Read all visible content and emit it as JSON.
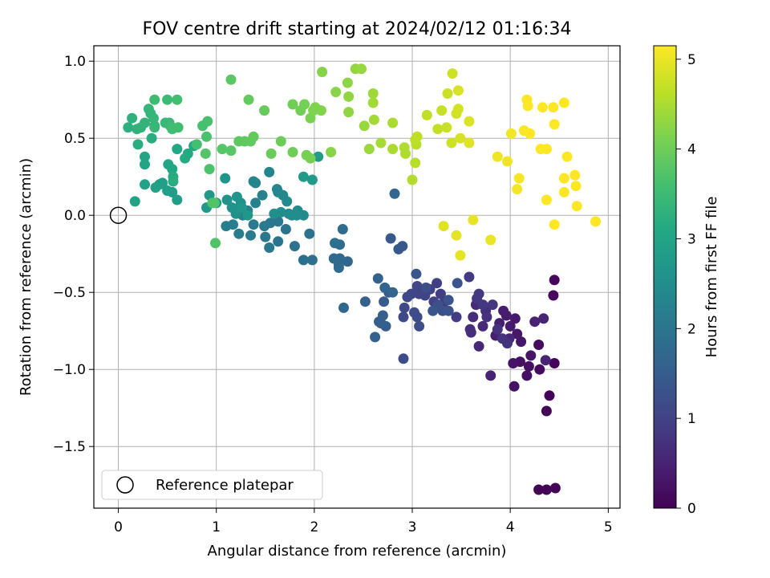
{
  "chart_data": {
    "type": "scatter",
    "title": "FOV centre drift starting at 2024/02/12 01:16:34",
    "xlabel": "Angular distance from reference (arcmin)",
    "ylabel": "Rotation from reference (arcmin)",
    "xlim": [
      -0.25,
      5.12
    ],
    "ylim": [
      -1.9,
      1.1
    ],
    "xticks": [
      0,
      1,
      2,
      3,
      4,
      5
    ],
    "xtick_labels": [
      "0",
      "1",
      "2",
      "3",
      "4",
      "5"
    ],
    "yticks": [
      1.0,
      0.5,
      0.0,
      -0.5,
      -1.0,
      -1.5
    ],
    "ytick_labels": [
      "1.0",
      "0.5",
      "0.0",
      "−0.5",
      "−1.0",
      "−1.5"
    ],
    "grid": true,
    "colormap": "viridis",
    "colorbar": {
      "label": "Hours from first FF file",
      "range": [
        0,
        5.15
      ],
      "ticks": [
        0,
        1,
        2,
        3,
        4,
        5
      ],
      "tick_labels": [
        "0",
        "1",
        "2",
        "3",
        "4",
        "5"
      ]
    },
    "legend": {
      "position": "lower-left",
      "entries": [
        {
          "label": "Reference platepar",
          "marker": "open-circle"
        }
      ]
    },
    "reference_point": {
      "x": 0.0,
      "y": 0.0
    },
    "points": [
      [
        4.29,
        -1.78,
        0.02
      ],
      [
        4.37,
        -1.78,
        0.03
      ],
      [
        4.46,
        -1.77,
        0.04
      ],
      [
        4.37,
        -1.27,
        0.05
      ],
      [
        4.4,
        -1.17,
        0.06
      ],
      [
        4.45,
        -0.96,
        0.08
      ],
      [
        4.45,
        -0.42,
        0.1
      ],
      [
        4.44,
        -0.52,
        0.12
      ],
      [
        4.3,
        -1.0,
        0.14
      ],
      [
        4.29,
        -0.84,
        0.16
      ],
      [
        4.19,
        -0.98,
        0.2
      ],
      [
        4.17,
        -1.04,
        0.22
      ],
      [
        4.1,
        -0.95,
        0.24
      ],
      [
        4.04,
        -1.11,
        0.26
      ],
      [
        4.03,
        -0.96,
        0.28
      ],
      [
        4.21,
        -0.91,
        0.3
      ],
      [
        4.11,
        -0.82,
        0.32
      ],
      [
        4.07,
        -0.77,
        0.34
      ],
      [
        4.05,
        -0.67,
        0.36
      ],
      [
        4.0,
        -0.72,
        0.38
      ],
      [
        3.96,
        -0.65,
        0.4
      ],
      [
        3.93,
        -0.62,
        0.42
      ],
      [
        3.89,
        -0.7,
        0.44
      ],
      [
        3.85,
        -0.78,
        0.46
      ],
      [
        3.8,
        -1.04,
        0.48
      ],
      [
        4.25,
        -0.69,
        0.5
      ],
      [
        4.34,
        -0.67,
        0.52
      ],
      [
        4.36,
        -0.94,
        0.54
      ],
      [
        3.99,
        -0.8,
        0.56
      ],
      [
        3.68,
        -0.85,
        0.58
      ],
      [
        3.72,
        -0.72,
        0.6
      ],
      [
        3.65,
        -0.58,
        0.62
      ],
      [
        3.62,
        -0.66,
        0.64
      ],
      [
        3.59,
        -0.74,
        0.66
      ],
      [
        3.6,
        -0.76,
        0.68
      ],
      [
        3.75,
        -0.62,
        0.7
      ],
      [
        3.76,
        -0.66,
        0.72
      ],
      [
        3.87,
        -0.74,
        0.74
      ],
      [
        3.92,
        -0.8,
        0.76
      ],
      [
        3.97,
        -0.83,
        0.78
      ],
      [
        3.82,
        -0.58,
        0.8
      ],
      [
        3.66,
        -0.54,
        0.82
      ],
      [
        3.68,
        -0.51,
        0.84
      ],
      [
        3.72,
        -0.58,
        0.86
      ],
      [
        3.58,
        -0.4,
        0.88
      ],
      [
        3.45,
        -0.66,
        0.9
      ],
      [
        3.33,
        -0.56,
        0.92
      ],
      [
        3.29,
        -0.51,
        0.94
      ],
      [
        3.25,
        -0.44,
        0.96
      ],
      [
        3.22,
        -0.56,
        0.98
      ],
      [
        3.18,
        -0.48,
        1.0
      ],
      [
        3.13,
        -0.52,
        1.02
      ],
      [
        3.07,
        -0.51,
        1.04
      ],
      [
        3.05,
        -0.46,
        1.06
      ],
      [
        2.99,
        -0.51,
        1.08
      ],
      [
        2.95,
        -0.53,
        1.1
      ],
      [
        2.92,
        -0.6,
        1.12
      ],
      [
        2.91,
        -0.66,
        1.14
      ],
      [
        2.91,
        -0.93,
        1.16
      ],
      [
        3.02,
        -0.63,
        1.18
      ],
      [
        3.05,
        -0.66,
        1.2
      ],
      [
        3.07,
        -0.72,
        1.22
      ],
      [
        3.14,
        -0.47,
        1.24
      ],
      [
        3.26,
        -0.58,
        1.26
      ],
      [
        3.31,
        -0.62,
        1.28
      ],
      [
        3.37,
        -0.55,
        1.3
      ],
      [
        3.37,
        -0.62,
        1.32
      ],
      [
        3.46,
        -0.44,
        1.34
      ],
      [
        3.21,
        -0.62,
        1.36
      ],
      [
        3.04,
        -0.38,
        1.38
      ],
      [
        2.86,
        -0.22,
        1.4
      ],
      [
        2.9,
        -0.2,
        1.42
      ],
      [
        2.78,
        -0.15,
        1.44
      ],
      [
        2.76,
        -0.5,
        1.46
      ],
      [
        2.71,
        -0.56,
        1.48
      ],
      [
        2.7,
        -0.65,
        1.5
      ],
      [
        2.73,
        -0.72,
        1.52
      ],
      [
        2.68,
        -0.7,
        1.54
      ],
      [
        2.66,
        -0.69,
        1.56
      ],
      [
        2.62,
        -0.79,
        1.58
      ],
      [
        2.52,
        -0.56,
        1.6
      ],
      [
        2.65,
        -0.41,
        1.62
      ],
      [
        2.72,
        -0.47,
        1.64
      ],
      [
        2.8,
        -0.5,
        1.66
      ],
      [
        2.82,
        0.14,
        1.68
      ],
      [
        2.3,
        -0.6,
        1.7
      ],
      [
        2.34,
        -0.3,
        1.72
      ],
      [
        2.26,
        -0.28,
        1.74
      ],
      [
        2.25,
        -0.32,
        1.76
      ],
      [
        2.25,
        -0.34,
        1.78
      ],
      [
        2.2,
        -0.28,
        1.8
      ],
      [
        2.29,
        -0.09,
        1.82
      ],
      [
        2.26,
        -0.19,
        1.84
      ],
      [
        2.21,
        -0.18,
        1.86
      ],
      [
        1.98,
        -0.29,
        1.88
      ],
      [
        1.89,
        -0.29,
        1.9
      ],
      [
        1.95,
        -0.12,
        1.92
      ],
      [
        1.8,
        -0.2,
        1.94
      ],
      [
        1.71,
        -0.09,
        1.96
      ],
      [
        1.63,
        -0.17,
        1.98
      ],
      [
        1.63,
        -0.04,
        2.0
      ],
      [
        1.55,
        -0.05,
        2.02
      ],
      [
        1.5,
        -0.14,
        2.04
      ],
      [
        1.54,
        -0.21,
        2.06
      ],
      [
        1.49,
        -0.07,
        2.08
      ],
      [
        1.38,
        -0.06,
        2.1
      ],
      [
        1.35,
        -0.13,
        2.12
      ],
      [
        1.23,
        -0.12,
        2.14
      ],
      [
        1.17,
        -0.06,
        2.16
      ],
      [
        1.1,
        -0.07,
        2.18
      ],
      [
        1.27,
        0.0,
        2.2
      ],
      [
        1.32,
        0.03,
        2.22
      ],
      [
        1.4,
        0.08,
        2.24
      ],
      [
        1.47,
        0.13,
        2.26
      ],
      [
        1.4,
        0.21,
        2.28
      ],
      [
        1.38,
        0.22,
        2.3
      ],
      [
        1.54,
        0.28,
        2.32
      ],
      [
        1.62,
        0.17,
        2.34
      ],
      [
        1.63,
        0.15,
        2.36
      ],
      [
        1.68,
        0.13,
        2.38
      ],
      [
        1.72,
        0.09,
        2.4
      ],
      [
        1.77,
        0.0,
        2.42
      ],
      [
        1.83,
        0.03,
        2.44
      ],
      [
        1.89,
        0.0,
        2.46
      ],
      [
        1.82,
        0.0,
        2.48
      ],
      [
        1.74,
        0.01,
        2.5
      ],
      [
        1.66,
        0.02,
        2.52
      ],
      [
        1.59,
        0.01,
        2.54
      ],
      [
        1.25,
        0.08,
        2.56
      ],
      [
        1.2,
        0.01,
        2.58
      ],
      [
        1.16,
        0.05,
        2.6
      ],
      [
        1.11,
        0.1,
        2.62
      ],
      [
        1.09,
        0.24,
        2.64
      ],
      [
        1.21,
        0.12,
        2.66
      ],
      [
        1.26,
        0.05,
        2.68
      ],
      [
        1.32,
        0.0,
        2.7
      ],
      [
        1.0,
        0.08,
        2.72
      ],
      [
        0.93,
        0.13,
        2.74
      ],
      [
        0.9,
        0.05,
        2.76
      ],
      [
        1.89,
        0.25,
        2.78
      ],
      [
        1.98,
        0.23,
        2.8
      ],
      [
        2.04,
        0.38,
        2.82
      ],
      [
        0.6,
        0.1,
        2.84
      ],
      [
        0.55,
        0.15,
        2.86
      ],
      [
        0.5,
        0.16,
        2.88
      ],
      [
        0.45,
        0.21,
        2.9
      ],
      [
        0.42,
        0.2,
        2.92
      ],
      [
        0.38,
        0.18,
        2.94
      ],
      [
        0.27,
        0.2,
        2.96
      ],
      [
        0.17,
        0.09,
        2.98
      ],
      [
        0.27,
        0.33,
        3.0
      ],
      [
        0.27,
        0.38,
        3.02
      ],
      [
        0.51,
        0.33,
        3.04
      ],
      [
        0.55,
        0.3,
        3.06
      ],
      [
        0.6,
        0.43,
        3.08
      ],
      [
        0.77,
        0.45,
        3.1
      ],
      [
        0.71,
        0.4,
        3.12
      ],
      [
        0.68,
        0.37,
        3.14
      ],
      [
        0.56,
        0.25,
        3.16
      ],
      [
        0.56,
        0.22,
        3.18
      ],
      [
        0.34,
        0.5,
        3.2
      ],
      [
        0.2,
        0.46,
        3.22
      ],
      [
        0.37,
        0.58,
        3.24
      ],
      [
        0.1,
        0.57,
        3.26
      ],
      [
        0.14,
        0.63,
        3.28
      ],
      [
        0.19,
        0.56,
        3.3
      ],
      [
        0.23,
        0.57,
        3.32
      ],
      [
        0.27,
        0.6,
        3.34
      ],
      [
        0.33,
        0.66,
        3.36
      ],
      [
        0.31,
        0.69,
        3.38
      ],
      [
        0.36,
        0.63,
        3.4
      ],
      [
        0.37,
        0.57,
        3.42
      ],
      [
        0.48,
        0.6,
        3.44
      ],
      [
        0.52,
        0.6,
        3.46
      ],
      [
        0.53,
        0.58,
        3.48
      ],
      [
        0.5,
        0.75,
        3.5
      ],
      [
        0.37,
        0.75,
        3.52
      ],
      [
        0.55,
        0.56,
        3.54
      ],
      [
        0.61,
        0.57,
        3.56
      ],
      [
        0.6,
        0.75,
        3.58
      ],
      [
        0.8,
        0.46,
        3.6
      ],
      [
        0.86,
        0.58,
        3.62
      ],
      [
        0.91,
        0.61,
        3.64
      ],
      [
        0.9,
        0.51,
        3.66
      ],
      [
        0.93,
        0.3,
        3.68
      ],
      [
        0.96,
        0.08,
        3.7
      ],
      [
        0.99,
        -0.18,
        3.72
      ],
      [
        0.98,
        0.08,
        3.74
      ],
      [
        0.89,
        0.4,
        3.76
      ],
      [
        1.06,
        0.43,
        3.78
      ],
      [
        1.15,
        0.42,
        3.8
      ],
      [
        1.15,
        0.88,
        3.82
      ],
      [
        1.23,
        0.48,
        3.84
      ],
      [
        1.29,
        0.48,
        3.86
      ],
      [
        1.35,
        0.48,
        3.88
      ],
      [
        1.38,
        0.51,
        3.9
      ],
      [
        1.33,
        0.75,
        3.92
      ],
      [
        1.49,
        0.68,
        3.94
      ],
      [
        1.56,
        0.4,
        3.96
      ],
      [
        1.66,
        0.48,
        3.98
      ],
      [
        1.78,
        0.41,
        4.0
      ],
      [
        1.78,
        0.72,
        4.02
      ],
      [
        1.86,
        0.68,
        4.04
      ],
      [
        1.9,
        0.72,
        4.06
      ],
      [
        1.92,
        0.39,
        4.08
      ],
      [
        1.96,
        0.37,
        4.1
      ],
      [
        1.96,
        0.63,
        4.12
      ],
      [
        1.99,
        0.68,
        4.14
      ],
      [
        2.01,
        0.7,
        4.16
      ],
      [
        2.07,
        0.68,
        4.18
      ],
      [
        2.08,
        0.93,
        4.2
      ],
      [
        2.17,
        0.41,
        4.22
      ],
      [
        2.22,
        0.8,
        4.24
      ],
      [
        2.34,
        0.86,
        4.26
      ],
      [
        2.35,
        0.67,
        4.28
      ],
      [
        2.35,
        0.77,
        4.3
      ],
      [
        2.42,
        0.95,
        4.32
      ],
      [
        2.48,
        0.95,
        4.34
      ],
      [
        2.51,
        0.58,
        4.36
      ],
      [
        2.56,
        0.43,
        4.38
      ],
      [
        2.6,
        0.79,
        4.4
      ],
      [
        2.6,
        0.73,
        4.42
      ],
      [
        2.61,
        0.62,
        4.44
      ],
      [
        2.68,
        0.47,
        4.46
      ],
      [
        2.8,
        0.6,
        4.48
      ],
      [
        2.8,
        0.43,
        4.5
      ],
      [
        2.92,
        0.44,
        4.52
      ],
      [
        2.93,
        0.4,
        4.54
      ],
      [
        3.0,
        0.23,
        4.56
      ],
      [
        3.03,
        0.34,
        4.58
      ],
      [
        3.04,
        0.46,
        4.6
      ],
      [
        3.03,
        0.49,
        4.62
      ],
      [
        3.05,
        0.51,
        4.64
      ],
      [
        3.15,
        0.65,
        4.66
      ],
      [
        3.26,
        0.56,
        4.68
      ],
      [
        3.3,
        0.68,
        4.7
      ],
      [
        3.35,
        0.57,
        4.72
      ],
      [
        3.36,
        0.79,
        4.74
      ],
      [
        3.4,
        0.47,
        4.76
      ],
      [
        3.41,
        0.92,
        4.78
      ],
      [
        3.45,
        0.66,
        4.8
      ],
      [
        3.47,
        0.69,
        4.82
      ],
      [
        3.49,
        0.5,
        4.84
      ],
      [
        3.47,
        0.81,
        4.86
      ],
      [
        3.58,
        0.61,
        4.88
      ],
      [
        3.58,
        0.47,
        4.9
      ],
      [
        3.32,
        -0.07,
        4.92
      ],
      [
        3.45,
        -0.13,
        4.94
      ],
      [
        3.49,
        -0.26,
        4.96
      ],
      [
        3.62,
        -0.03,
        4.98
      ],
      [
        3.8,
        -0.16,
        5.0
      ],
      [
        3.87,
        0.38,
        5.02
      ],
      [
        3.97,
        0.35,
        5.04
      ],
      [
        4.01,
        0.53,
        5.06
      ],
      [
        4.07,
        0.17,
        5.08
      ],
      [
        4.09,
        0.24,
        5.1
      ],
      [
        4.14,
        0.55,
        5.12
      ],
      [
        4.18,
        0.71,
        5.14
      ],
      [
        4.17,
        0.75,
        5.15
      ],
      [
        4.2,
        0.53,
        5.15
      ],
      [
        4.31,
        0.43,
        5.15
      ],
      [
        4.37,
        0.43,
        5.15
      ],
      [
        4.37,
        0.1,
        5.15
      ],
      [
        4.33,
        0.7,
        5.15
      ],
      [
        4.44,
        0.7,
        5.15
      ],
      [
        4.45,
        0.59,
        5.15
      ],
      [
        4.45,
        -0.06,
        5.15
      ],
      [
        4.55,
        0.73,
        5.15
      ],
      [
        4.55,
        0.24,
        5.15
      ],
      [
        4.58,
        0.38,
        5.15
      ],
      [
        4.55,
        0.15,
        5.15
      ],
      [
        4.66,
        0.26,
        5.15
      ],
      [
        4.67,
        0.19,
        5.15
      ],
      [
        4.68,
        0.06,
        5.15
      ],
      [
        4.87,
        -0.04,
        5.15
      ]
    ]
  }
}
